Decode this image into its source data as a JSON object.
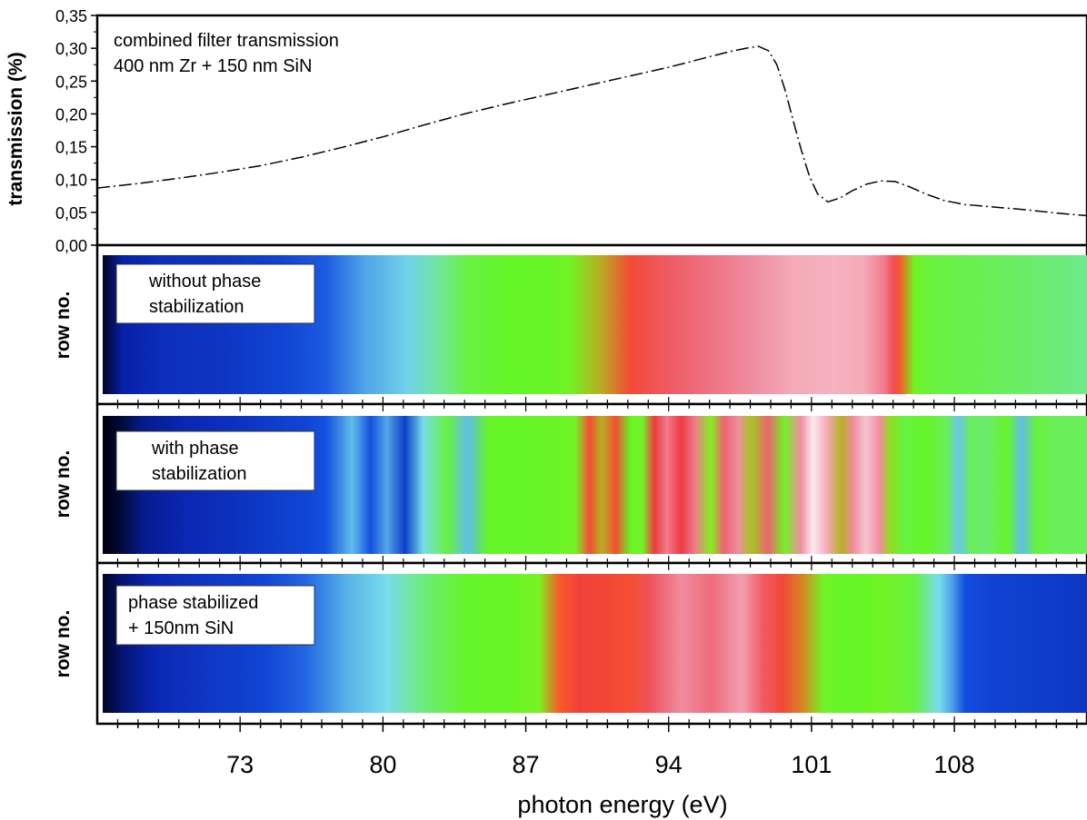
{
  "chart_data": [
    {
      "type": "line",
      "title": "",
      "xlabel": "",
      "ylabel": "transmission (%)",
      "annotation": [
        "combined filter transmission",
        "400 nm Zr + 150 nm SiN"
      ],
      "xlim": [
        66,
        114.5
      ],
      "ylim": [
        0,
        0.35
      ],
      "y_ticks": [
        "0,00",
        "0,05",
        "0,10",
        "0,15",
        "0,20",
        "0,25",
        "0,30",
        "0,35"
      ],
      "line_style": "dash-dot",
      "series": [
        {
          "x": [
            66,
            68,
            70,
            72,
            74,
            76,
            78,
            80,
            82,
            84,
            86,
            88,
            90,
            92,
            94,
            95,
            96,
            97,
            97.8,
            98.4,
            98.9,
            99.3,
            99.7,
            100.1,
            100.5,
            100.9,
            101.3,
            101.8,
            102.4,
            103,
            103.7,
            104.4,
            105.1,
            105.8,
            106.6,
            107.5,
            108.5,
            110,
            111.5,
            113,
            114.5
          ],
          "y": [
            0.087,
            0.094,
            0.102,
            0.111,
            0.121,
            0.134,
            0.149,
            0.165,
            0.183,
            0.2,
            0.215,
            0.229,
            0.243,
            0.257,
            0.271,
            0.279,
            0.287,
            0.295,
            0.3,
            0.303,
            0.296,
            0.275,
            0.237,
            0.19,
            0.145,
            0.105,
            0.078,
            0.066,
            0.072,
            0.083,
            0.093,
            0.098,
            0.097,
            0.089,
            0.078,
            0.068,
            0.062,
            0.058,
            0.054,
            0.049,
            0.045
          ]
        }
      ]
    },
    {
      "type": "heatmap",
      "ylabel": "row no.",
      "label": [
        "without phase",
        "stabilization"
      ],
      "xlim": [
        66,
        114.5
      ],
      "x": [
        66,
        67,
        69,
        72,
        75,
        77,
        79,
        81,
        82.5,
        84,
        86,
        88,
        89,
        90.5,
        92,
        94,
        96,
        98,
        100,
        102,
        103.5,
        104.5,
        105,
        105.3,
        106,
        107,
        110,
        114.5
      ],
      "intensity": [
        0.02,
        0.12,
        0.16,
        0.18,
        0.22,
        0.26,
        0.33,
        0.37,
        0.41,
        0.45,
        0.46,
        0.47,
        0.5,
        0.58,
        0.67,
        0.76,
        0.79,
        0.82,
        0.85,
        0.86,
        0.85,
        0.8,
        0.74,
        0.62,
        0.5,
        0.45,
        0.44,
        0.42
      ]
    },
    {
      "type": "heatmap",
      "ylabel": "row no.",
      "label": [
        "with phase",
        "stabilization"
      ],
      "xlim": [
        66,
        114.5
      ],
      "x": [
        66,
        67,
        68,
        70,
        72,
        74,
        76,
        77,
        78.3,
        79.2,
        80,
        80.9,
        81.8,
        83,
        84,
        85,
        86.5,
        88,
        89.3,
        90,
        90.6,
        91.3,
        92,
        92.6,
        93.2,
        93.8,
        94.5,
        95.2,
        96,
        96.6,
        97.3,
        98,
        98.8,
        99.6,
        100.4,
        101,
        101.7,
        102.4,
        103,
        103.6,
        104.3,
        104.8,
        105.5,
        106.5,
        107.6,
        108.2,
        108.8,
        109.5,
        110.6,
        111.3,
        112,
        113,
        114.5
      ],
      "intensity": [
        0.0,
        0.04,
        0.1,
        0.14,
        0.16,
        0.19,
        0.22,
        0.25,
        0.35,
        0.25,
        0.33,
        0.2,
        0.38,
        0.45,
        0.35,
        0.46,
        0.46,
        0.47,
        0.5,
        0.66,
        0.58,
        0.66,
        0.47,
        0.5,
        0.72,
        0.8,
        0.72,
        0.8,
        0.55,
        0.77,
        0.82,
        0.57,
        0.77,
        0.5,
        0.82,
        0.92,
        0.85,
        0.58,
        0.82,
        0.88,
        0.82,
        0.56,
        0.45,
        0.46,
        0.44,
        0.36,
        0.44,
        0.43,
        0.46,
        0.35,
        0.45,
        0.44,
        0.44
      ]
    },
    {
      "type": "heatmap",
      "ylabel": "row no.",
      "label": [
        "phase stabilized",
        "+ 150nm SiN"
      ],
      "xlim": [
        66,
        114.5
      ],
      "x": [
        66,
        67,
        68.5,
        71,
        74,
        76,
        78,
        80,
        82,
        84,
        86,
        87.5,
        88.5,
        89.5,
        91,
        92,
        93,
        94.5,
        96,
        97.5,
        98.5,
        99.5,
        100.5,
        101.5,
        102.5,
        103.5,
        104.5,
        106,
        107.2,
        107.8,
        108.5,
        110,
        112,
        114.5
      ],
      "intensity": [
        0.02,
        0.08,
        0.14,
        0.18,
        0.22,
        0.27,
        0.34,
        0.38,
        0.43,
        0.46,
        0.47,
        0.52,
        0.62,
        0.7,
        0.68,
        0.66,
        0.75,
        0.82,
        0.78,
        0.84,
        0.76,
        0.68,
        0.6,
        0.5,
        0.46,
        0.47,
        0.5,
        0.45,
        0.38,
        0.33,
        0.24,
        0.21,
        0.2,
        0.18
      ]
    },
    {
      "type": "axis",
      "xlabel": "photon energy (eV)",
      "x_ticks": [
        "73",
        "80",
        "87",
        "94",
        "101",
        "108"
      ],
      "xlim": [
        66,
        114.5
      ]
    }
  ]
}
